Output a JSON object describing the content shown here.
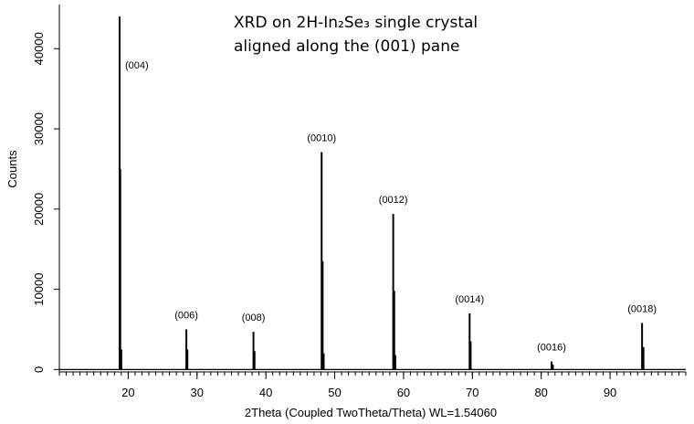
{
  "chart_data": {
    "type": "stick",
    "title": "XRD on 2H-In₂Se₃ single crystal",
    "subtitle": "aligned along the (001) pane",
    "x_label": "2Theta (Coupled TwoTheta/Theta) WL=1.54060",
    "y_label": "Counts",
    "x": [
      18.75,
      18.85,
      19.0,
      28.45,
      28.6,
      38.2,
      38.35,
      48.1,
      48.25,
      48.4,
      58.5,
      58.65,
      58.8,
      69.6,
      69.75,
      81.5,
      81.7,
      94.65,
      94.85
    ],
    "values": [
      44000,
      25000,
      2500,
      5000,
      2500,
      4700,
      2300,
      27100,
      13500,
      2000,
      19400,
      9800,
      1800,
      7000,
      3500,
      1000,
      600,
      5800,
      2800
    ],
    "peak_labels": [
      "(004)",
      null,
      null,
      "(006)",
      null,
      "(008)",
      null,
      "(0010)",
      null,
      null,
      "(0012)",
      null,
      null,
      "(0014)",
      null,
      "(0016)",
      null,
      "(0018)",
      null
    ],
    "color": "#000000",
    "xlim": [
      10,
      101
    ],
    "ylim": [
      -300,
      45500
    ],
    "xticks": [
      20,
      30,
      40,
      50,
      60,
      70,
      80,
      90
    ],
    "yticks": [
      0,
      10000,
      20000,
      30000,
      40000
    ],
    "grid": false
  }
}
